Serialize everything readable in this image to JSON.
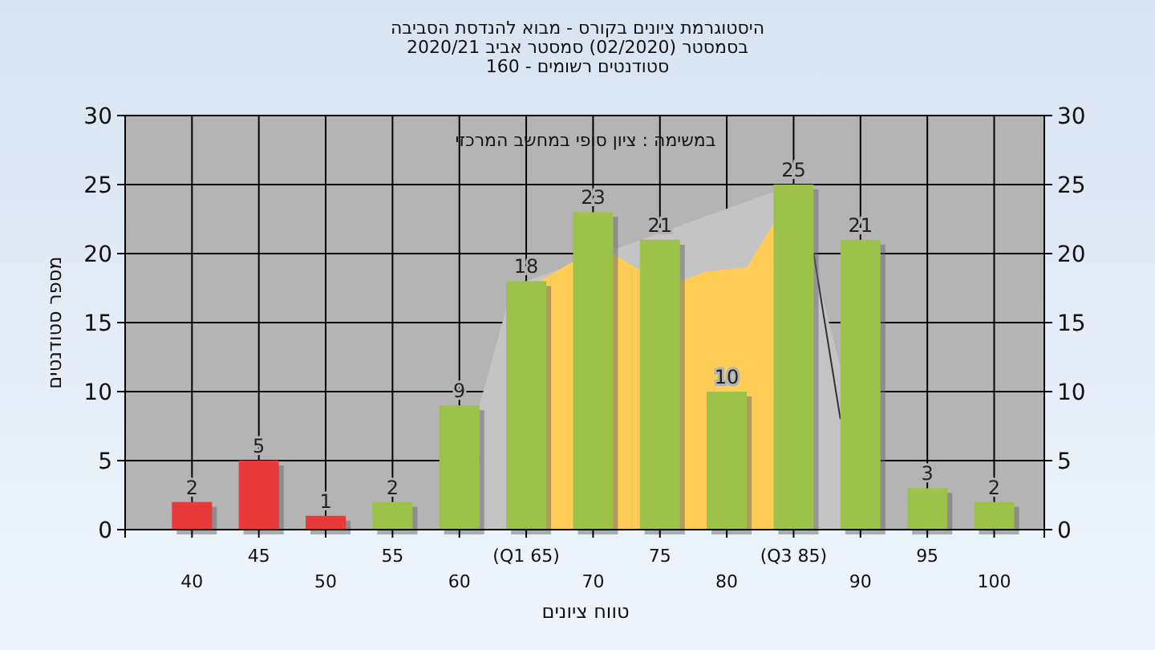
{
  "chart_data": {
    "type": "bar",
    "title": "היסטוגרמת ציונים בקורס - מבוא להנדסת הסביבה\nבסמסטר  (02/2020)  סמסטר אביב 2020/21\nסטודנטים רשומים - 160",
    "xlabel": "טווח ציונים",
    "ylabel": "מספר סטודנטים",
    "annotations": [
      "במשימה : ציון סופי במחשב המרכזי"
    ],
    "categories": [
      "40",
      "45",
      "50",
      "55",
      "60",
      "(Q1 65)",
      "70",
      "75",
      "80",
      "(Q3 85)",
      "90",
      "95",
      "100"
    ],
    "series": [
      {
        "colors": [
          "#e8393b",
          "#e8393b",
          "#e8393b",
          "#9cc24a",
          "#9cc24a",
          "#9cc24a",
          "#9cc24a",
          "#9cc24a",
          "#9cc24a",
          "#9cc24a",
          "#9cc24a",
          "#9cc24a",
          "#9cc24a"
        ],
        "values": [
          2,
          5,
          1,
          2,
          9,
          18,
          23,
          21,
          10,
          25,
          21,
          3,
          2
        ]
      }
    ],
    "data_labels": true,
    "grid": true,
    "ylim": [
      0,
      30
    ],
    "yticks": [
      0,
      5,
      10,
      15,
      20,
      25,
      30
    ],
    "y2lim": [
      0,
      30
    ],
    "y2ticks": [
      0,
      5,
      10,
      15,
      20,
      25,
      30
    ]
  }
}
